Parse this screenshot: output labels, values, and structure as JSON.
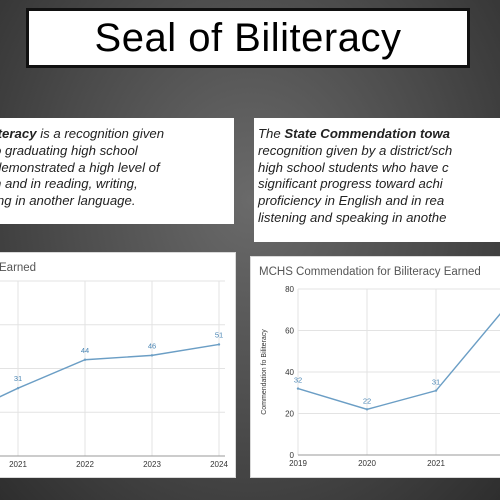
{
  "slide": {
    "title": "Seal of Biliteracy"
  },
  "left_text": {
    "line1_bold": "iteracy",
    "line1_rest": " is a recognition given",
    "line2": "o graduating high school",
    "line3": "demonstrated a high level of",
    "line4": "h and in reading, writing,",
    "line5": "ing in another language."
  },
  "right_text": {
    "line1_pre": "The ",
    "line1_bold": "State Commendation towa",
    "line2": "recognition given by a district/sch",
    "line3": "high school students who have c",
    "line4": "significant progress toward achi",
    "line5": "proficiency in English and in rea",
    "line6": "listening and speaking in anothe"
  },
  "colors": {
    "line": "#6b9ec5",
    "grid": "#e3e3e3",
    "label": "#4a86b5"
  },
  "chart_data": [
    {
      "type": "line",
      "title": "Earned",
      "categories": [
        "2021",
        "2022",
        "2023",
        "2024"
      ],
      "values": [
        31,
        44,
        46,
        51
      ],
      "data_labels": [
        "31",
        "44",
        "46",
        "51"
      ],
      "grid": true
    },
    {
      "type": "line",
      "title": "MCHS Commendation for Biliteracy Earned",
      "ylabel": "Commendation fo Biliteracy",
      "categories": [
        "2019",
        "2020",
        "2021"
      ],
      "values": [
        32,
        22,
        31
      ],
      "data_labels": [
        "32",
        "22",
        "31"
      ],
      "yticks": [
        "80",
        "60",
        "40",
        "20",
        "0"
      ],
      "ylim": [
        0,
        80
      ],
      "grid": true
    }
  ]
}
